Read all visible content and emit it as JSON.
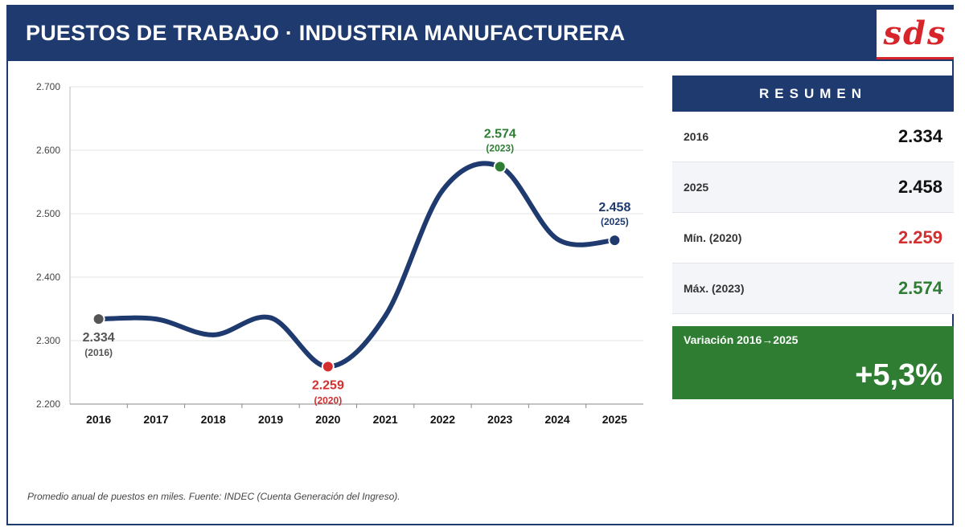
{
  "header": {
    "title": "PUESTOS DE TRABAJO · INDUSTRIA MANUFACTURERA",
    "logo_text": "sds"
  },
  "colors": {
    "navy": "#1e3a6e",
    "red": "#d32f2f",
    "green": "#2e7d32",
    "gray": "#555555",
    "grid": "#e6e6e6"
  },
  "chart_data": {
    "type": "line",
    "title": "PUESTOS DE TRABAJO · INDUSTRIA MANUFACTURERA",
    "xlabel": "",
    "ylabel": "",
    "categories": [
      "2016",
      "2017",
      "2018",
      "2019",
      "2020",
      "2021",
      "2022",
      "2023",
      "2024",
      "2025"
    ],
    "series": [
      {
        "name": "Puestos de trabajo (miles)",
        "values": [
          2334,
          2334,
          2309,
          2336,
          2259,
          2339,
          2537,
          2574,
          2460,
          2458
        ]
      }
    ],
    "ylim": [
      2200,
      2700
    ],
    "yticks": [
      2200,
      2300,
      2400,
      2500,
      2600,
      2700
    ],
    "ytick_labels": [
      "2.200",
      "2.300",
      "2.400",
      "2.500",
      "2.600",
      "2.700"
    ],
    "grid": true,
    "highlights": [
      {
        "index": 0,
        "value_label": "2.334",
        "year_label": "(2016)",
        "color": "#555555",
        "placement": "below"
      },
      {
        "index": 4,
        "value_label": "2.259",
        "year_label": "(2020)",
        "color": "#d32f2f",
        "placement": "below"
      },
      {
        "index": 7,
        "value_label": "2.574",
        "year_label": "(2023)",
        "color": "#2e7d32",
        "placement": "above"
      },
      {
        "index": 9,
        "value_label": "2.458",
        "year_label": "(2025)",
        "color": "#1e3a6e",
        "placement": "above"
      }
    ]
  },
  "summary": {
    "title": "RESUMEN",
    "rows": [
      {
        "label": "2016",
        "value": "2.334",
        "color": "#111111"
      },
      {
        "label": "2025",
        "value": "2.458",
        "color": "#111111"
      },
      {
        "label": "Mín. (2020)",
        "value": "2.259",
        "color": "#d32f2f"
      },
      {
        "label": "Máx. (2023)",
        "value": "2.574",
        "color": "#2e7d32"
      }
    ]
  },
  "variation": {
    "label": "Variación 2016→2025",
    "value": "+5,3%"
  },
  "footnote": "Promedio anual de puestos en miles. Fuente: INDEC (Cuenta Generación del Ingreso)."
}
